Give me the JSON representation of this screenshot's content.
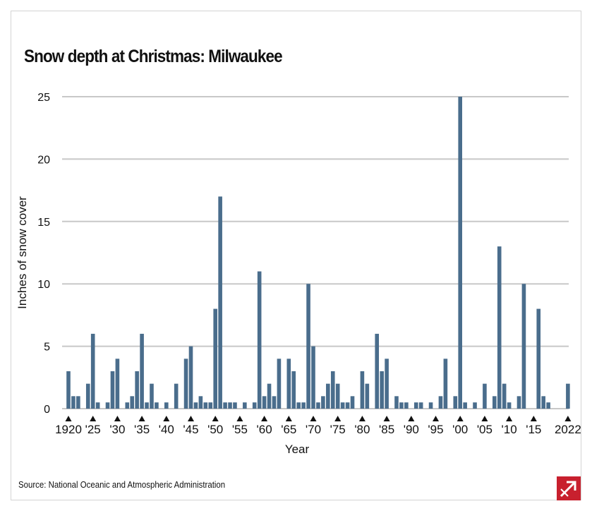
{
  "chart_data": {
    "type": "bar",
    "title": "Snow depth at Christmas: Milwaukee",
    "xlabel": "Year",
    "ylabel": "Inches of snow cover",
    "ylim": [
      0,
      25
    ],
    "y_ticks": [
      0,
      5,
      10,
      15,
      20,
      25
    ],
    "grid": "horizontal",
    "x_ticks": [
      1920,
      1925,
      1930,
      1935,
      1940,
      1945,
      1950,
      1955,
      1960,
      1965,
      1970,
      1975,
      1980,
      1985,
      1990,
      1995,
      2000,
      2005,
      2010,
      2015,
      2022
    ],
    "x_tick_labels": [
      "1920",
      "'25",
      "'30",
      "'35",
      "'40",
      "'45",
      "'50",
      "'55",
      "'60",
      "'65",
      "'70",
      "'75",
      "'80",
      "'85",
      "'90",
      "'95",
      "'00",
      "'05",
      "'10",
      "'15",
      "2022"
    ],
    "x_start": 1920,
    "values": [
      3,
      1,
      1,
      0,
      2,
      6,
      0.5,
      0,
      0.5,
      3,
      4,
      0,
      0.5,
      1,
      3,
      6,
      0.5,
      2,
      0.5,
      0,
      0.5,
      0,
      2,
      0,
      4,
      5,
      0.5,
      1,
      0.5,
      0.5,
      8,
      17,
      0.5,
      0.5,
      0.5,
      0,
      0.5,
      0,
      0.5,
      11,
      1,
      2,
      1,
      4,
      0,
      4,
      3,
      0.5,
      0.5,
      10,
      5,
      0.5,
      1,
      2,
      3,
      2,
      0.5,
      0.5,
      1,
      0,
      3,
      2,
      0,
      6,
      3,
      4,
      0,
      1,
      0.5,
      0.5,
      0,
      0.5,
      0.5,
      0,
      0.5,
      0,
      1,
      4,
      0,
      1,
      25,
      0.5,
      0,
      0.5,
      0,
      2,
      0,
      1,
      13,
      2,
      0.5,
      0,
      1,
      10,
      0,
      0,
      8,
      1,
      0.5,
      0,
      0,
      0,
      2
    ],
    "bar_color": "#4a6d8c",
    "grid_color": "#c8c8c8"
  },
  "source": "Source: National Oceanic and Atmospheric Administration",
  "logo_color": "#c8202e"
}
